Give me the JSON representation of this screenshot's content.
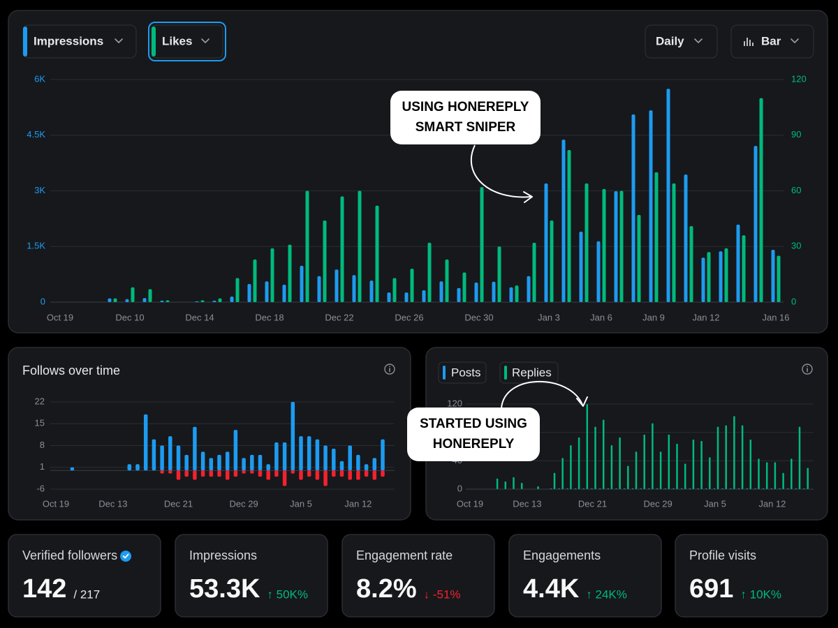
{
  "controls": {
    "interval": "Daily",
    "view": "Bar"
  },
  "chart_data": [
    {
      "type": "bar",
      "categories": [
        "Oct 19",
        null,
        null,
        null,
        "Dec 10",
        null,
        null,
        null,
        "Dec 14",
        null,
        null,
        null,
        "Dec 18",
        null,
        null,
        null,
        "Dec 22",
        null,
        null,
        null,
        "Dec 26",
        null,
        null,
        null,
        "Dec 30",
        null,
        null,
        null,
        "Jan 3",
        null,
        null,
        "Jan 6",
        null,
        null,
        "Jan 9",
        null,
        null,
        "Jan 12",
        null,
        null,
        null,
        "Jan 16"
      ],
      "series": [
        {
          "name": "Impressions",
          "color": "#1d9bf0",
          "values": [
            0,
            0,
            0,
            100,
            80,
            110,
            40,
            0,
            20,
            40,
            150,
            490,
            560,
            470,
            980,
            700,
            880,
            730,
            580,
            260,
            260,
            320,
            560,
            380,
            530,
            550,
            400,
            700,
            3200,
            4380,
            1900,
            1640,
            2990,
            5060,
            5170,
            5750,
            3440,
            1200,
            1370,
            2090,
            4210,
            1410
          ]
        },
        {
          "name": "Likes",
          "color": "#00ba7c",
          "axis": "y2",
          "values": [
            0,
            0,
            0,
            2,
            8,
            7,
            1,
            0,
            1,
            2,
            13,
            23,
            29,
            31,
            60,
            44,
            57,
            60,
            52,
            13,
            18,
            32,
            23,
            16,
            62,
            30,
            9,
            32,
            44,
            82,
            64,
            61,
            60,
            47,
            70,
            64,
            41,
            27,
            29,
            36,
            110,
            25
          ]
        }
      ],
      "ylim": [
        0,
        6000
      ],
      "yticks": [
        0,
        {
          "value": 1500,
          "label": "1.5K"
        },
        {
          "value": 3000,
          "label": "3K"
        },
        {
          "value": 4500,
          "label": "4.5K"
        },
        {
          "value": 6000,
          "label": "6K"
        }
      ],
      "y2lim": [
        0,
        120
      ],
      "y2ticks": [
        0,
        30,
        60,
        90,
        120
      ],
      "grid": true,
      "annotation": [
        "USING HONEREPLY",
        "SMART SNIPER"
      ]
    },
    {
      "type": "bar",
      "title": "Follows over time",
      "categories": [
        "Oct 19",
        null,
        null,
        null,
        null,
        null,
        null,
        "Dec 13",
        null,
        null,
        null,
        null,
        null,
        null,
        null,
        "Dec 21",
        null,
        null,
        null,
        null,
        null,
        null,
        null,
        "Dec 29",
        null,
        null,
        null,
        null,
        null,
        null,
        "Jan 5",
        null,
        null,
        null,
        null,
        null,
        null,
        "Jan 12",
        null,
        null,
        null
      ],
      "series": [
        {
          "color": "#1d9bf0",
          "values": [
            0,
            0,
            1,
            0,
            0,
            0,
            0,
            0,
            0,
            2,
            2,
            18,
            10,
            8,
            11,
            8,
            5,
            14,
            6,
            4,
            5,
            6,
            13,
            4,
            5,
            5,
            2,
            9,
            9,
            22,
            11,
            11,
            10,
            8,
            7,
            3,
            8,
            5,
            2,
            4,
            10
          ]
        },
        {
          "color": "#f4212e",
          "values": [
            0,
            0,
            0,
            0,
            0,
            0,
            0,
            0,
            0,
            0,
            0,
            0,
            0,
            -1,
            -1,
            -3,
            -2,
            -3,
            -2,
            -2,
            -2,
            -3,
            -2,
            -1,
            -1,
            -2,
            -3,
            -2,
            -5,
            -1,
            -3,
            -2,
            -3,
            -5,
            -2,
            -2,
            -3,
            -3,
            -2,
            -3,
            -2
          ]
        }
      ],
      "ylim": [
        -6,
        22
      ],
      "yticks": [
        -6,
        1,
        8,
        15,
        22
      ],
      "grid": true
    },
    {
      "type": "bar",
      "categories": [
        "Oct 19",
        null,
        null,
        null,
        null,
        null,
        null,
        "Dec 13",
        null,
        null,
        null,
        null,
        null,
        null,
        null,
        "Dec 21",
        null,
        null,
        null,
        null,
        null,
        null,
        null,
        "Dec 29",
        null,
        null,
        null,
        null,
        null,
        null,
        "Jan 5",
        null,
        null,
        null,
        null,
        null,
        null,
        "Jan 12",
        null,
        null,
        null,
        null
      ],
      "series": [
        {
          "name": "Posts",
          "color": "#1d9bf0",
          "values": [
            0,
            0,
            0,
            0,
            0,
            0,
            0,
            0,
            0,
            0,
            1,
            1,
            1,
            1,
            1,
            1,
            1,
            1,
            1,
            1,
            1,
            1,
            1,
            1,
            1,
            1,
            1,
            1,
            1,
            1,
            1,
            1,
            1,
            1,
            1,
            1,
            1,
            1,
            1,
            1,
            1,
            1
          ]
        },
        {
          "name": "Replies",
          "color": "#00ba7c",
          "values": [
            0,
            0,
            0,
            15,
            11,
            17,
            9,
            0,
            4,
            0,
            23,
            44,
            62,
            73,
            120,
            88,
            98,
            62,
            73,
            33,
            53,
            77,
            93,
            53,
            77,
            64,
            36,
            70,
            68,
            45,
            88,
            90,
            103,
            90,
            70,
            43,
            38,
            38,
            23,
            43,
            88,
            30
          ]
        }
      ],
      "ylim": [
        0,
        120
      ],
      "yticks": [
        0,
        40,
        80,
        120
      ],
      "grid": true,
      "annotation": [
        "STARTED USING",
        "HONEREPLY"
      ]
    }
  ],
  "stats": [
    {
      "label": "Verified followers",
      "value": "142",
      "total": "/ 217"
    },
    {
      "label": "Impressions",
      "value": "53.3K",
      "change": "↑ 50K%",
      "color": "#00ba7c"
    },
    {
      "label": "Engagement rate",
      "value": "8.2%",
      "change": "↓ -51%",
      "color": "#f4212e"
    },
    {
      "label": "Engagements",
      "value": "4.4K",
      "change": "↑ 24K%",
      "color": "#00ba7c"
    },
    {
      "label": "Profile visits",
      "value": "691",
      "change": "↑ 10K%",
      "color": "#00ba7c"
    }
  ]
}
